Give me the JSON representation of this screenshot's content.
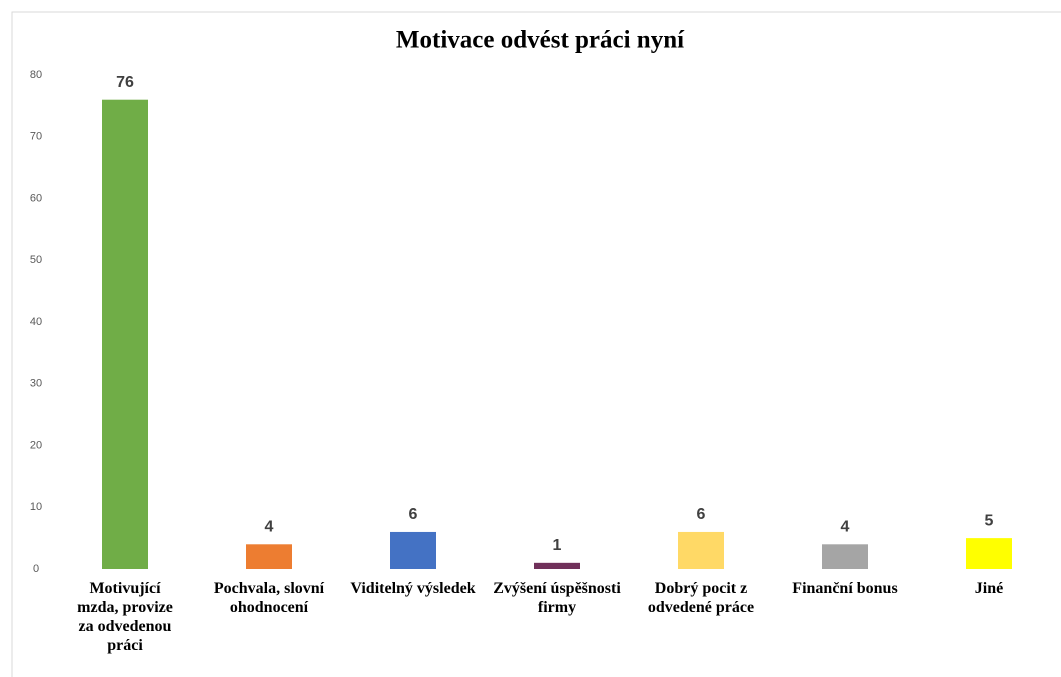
{
  "chart_data": {
    "type": "bar",
    "title": "Motivace odvést práci nyní",
    "categories": [
      "Motivující mzda, provize za odvedenou práci",
      "Pochvala, slovní ohodnocení",
      "Viditelný výsledek",
      "Zvýšení úspěšnosti firmy",
      "Dobrý pocit z odvedené práce",
      "Finanční bonus",
      "Jiné"
    ],
    "values": [
      76,
      4,
      6,
      1,
      6,
      4,
      5
    ],
    "colors": [
      "#70ad47",
      "#ed7d31",
      "#4472c4",
      "#70305a",
      "#ffd966",
      "#a5a5a5",
      "#ffff00"
    ],
    "ylim": [
      0,
      80
    ],
    "yticks": [
      0,
      10,
      20,
      30,
      40,
      50,
      60,
      70,
      80
    ],
    "grid": false
  }
}
